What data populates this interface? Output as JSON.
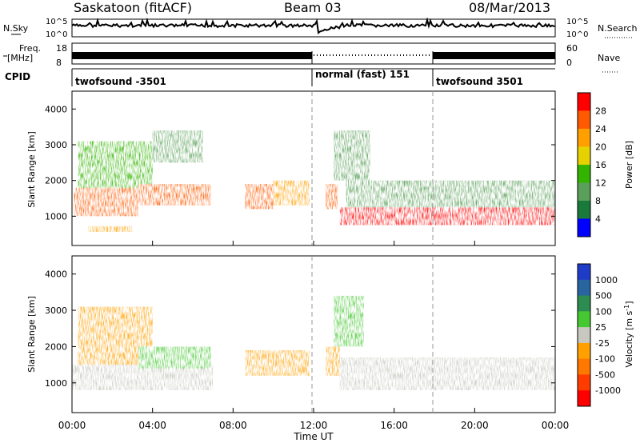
{
  "header": {
    "station": "Saskatoon (fitACF)",
    "beam": "Beam 03",
    "date": "08/Mar/2013"
  },
  "top_panels": {
    "nsky_label": "N.Sky",
    "nsky_ticks": [
      "10^5",
      "10^0"
    ],
    "nsearch_label": "N.Search",
    "nsearch_ticks": [
      "10^5",
      "10^0"
    ],
    "freq_label": "Freq.",
    "freq_unit": "[MHz]",
    "freq_ticks": [
      "18",
      "8"
    ],
    "nave_label": "Nave",
    "nave_ticks": [
      "60",
      "0"
    ],
    "cpid_label": "CPID",
    "cpid_segments": [
      {
        "label": "twofsound -3501",
        "start_hour": 0,
        "end_hour": 12
      },
      {
        "label": "normal (fast) 151",
        "start_hour": 12,
        "end_hour": 18
      },
      {
        "label": "twofsound 3501",
        "start_hour": 18,
        "end_hour": 24
      }
    ]
  },
  "power_colorbar": {
    "label": "Power [dB]",
    "ticks": [
      "28",
      "24",
      "20",
      "16",
      "12",
      "8",
      "4"
    ],
    "colors": [
      "#ff0000",
      "#ff5a00",
      "#ffa000",
      "#e6d200",
      "#32b400",
      "#5aa05a",
      "#1a7a3c",
      "#0000ff"
    ]
  },
  "velocity_colorbar": {
    "label": "Velocity [m s",
    "label_sup": "-1",
    "label_end": "]",
    "ticks": [
      "1000",
      "500",
      "100",
      "25",
      "-25",
      "-100",
      "-500",
      "-1000"
    ],
    "colors": [
      "#1e3cc8",
      "#2864a0",
      "#2d8c50",
      "#46c832",
      "#c8c8c0",
      "#ffa000",
      "#ff7800",
      "#ff3c00",
      "#ff0000"
    ]
  },
  "xaxis": {
    "title": "Time UT",
    "ticks": [
      "00:00",
      "04:00",
      "08:00",
      "12:00",
      "16:00",
      "20:00",
      "00:00"
    ]
  },
  "yaxis": {
    "title": "Slant Range [km]",
    "ticks": [
      "4000",
      "3000",
      "2000",
      "1000"
    ]
  },
  "chart_data": [
    {
      "type": "heatmap",
      "title": "",
      "xlabel": "Time UT",
      "ylabel": "Slant Range [km]",
      "xlim": [
        0,
        24
      ],
      "ylim": [
        180,
        4500
      ],
      "colorbar_label": "Power [dB]",
      "color_range": [
        0,
        30
      ],
      "regions": [
        {
          "t0": 0.1,
          "t1": 3.3,
          "r0": 1000,
          "r1": 1800,
          "value": 26
        },
        {
          "t0": 0.3,
          "t1": 4.0,
          "r0": 1800,
          "r1": 3100,
          "value": 14
        },
        {
          "t0": 3.3,
          "t1": 6.9,
          "r0": 1300,
          "r1": 1900,
          "value": 24
        },
        {
          "t0": 4.0,
          "t1": 6.5,
          "r0": 2500,
          "r1": 3400,
          "value": 8
        },
        {
          "t0": 0.8,
          "t1": 3.0,
          "r0": 560,
          "r1": 720,
          "value": 20
        },
        {
          "t0": 8.6,
          "t1": 10.0,
          "r0": 1200,
          "r1": 1900,
          "value": 27
        },
        {
          "t0": 10.0,
          "t1": 11.8,
          "r0": 1300,
          "r1": 2000,
          "value": 20
        },
        {
          "t0": 12.6,
          "t1": 13.2,
          "r0": 1200,
          "r1": 1900,
          "value": 26
        },
        {
          "t0": 13.3,
          "t1": 24.0,
          "r0": 750,
          "r1": 1250,
          "value": 28
        },
        {
          "t0": 13.6,
          "t1": 24.0,
          "r0": 1250,
          "r1": 2000,
          "value": 10
        },
        {
          "t0": 13.0,
          "t1": 14.8,
          "r0": 2000,
          "r1": 3400,
          "value": 9
        }
      ]
    },
    {
      "type": "heatmap",
      "title": "",
      "xlabel": "Time UT",
      "ylabel": "Slant Range [km]",
      "xlim": [
        0,
        24
      ],
      "ylim": [
        180,
        4500
      ],
      "colorbar_label": "Velocity [m s-1]",
      "color_range": [
        -1000,
        1000
      ],
      "regions": [
        {
          "t0": 0.0,
          "t1": 7.0,
          "r0": 800,
          "r1": 1500,
          "value": 0
        },
        {
          "t0": 0.3,
          "t1": 4.0,
          "r0": 1500,
          "r1": 3100,
          "value": -200
        },
        {
          "t0": 3.3,
          "t1": 6.9,
          "r0": 1400,
          "r1": 2000,
          "value": 150
        },
        {
          "t0": 8.6,
          "t1": 11.8,
          "r0": 1200,
          "r1": 1900,
          "value": -150
        },
        {
          "t0": 12.6,
          "t1": 13.3,
          "r0": 1200,
          "r1": 2000,
          "value": -300
        },
        {
          "t0": 13.3,
          "t1": 24.0,
          "r0": 800,
          "r1": 1700,
          "value": 0
        },
        {
          "t0": 13.0,
          "t1": 14.5,
          "r0": 2000,
          "r1": 3400,
          "value": 200
        }
      ]
    }
  ]
}
